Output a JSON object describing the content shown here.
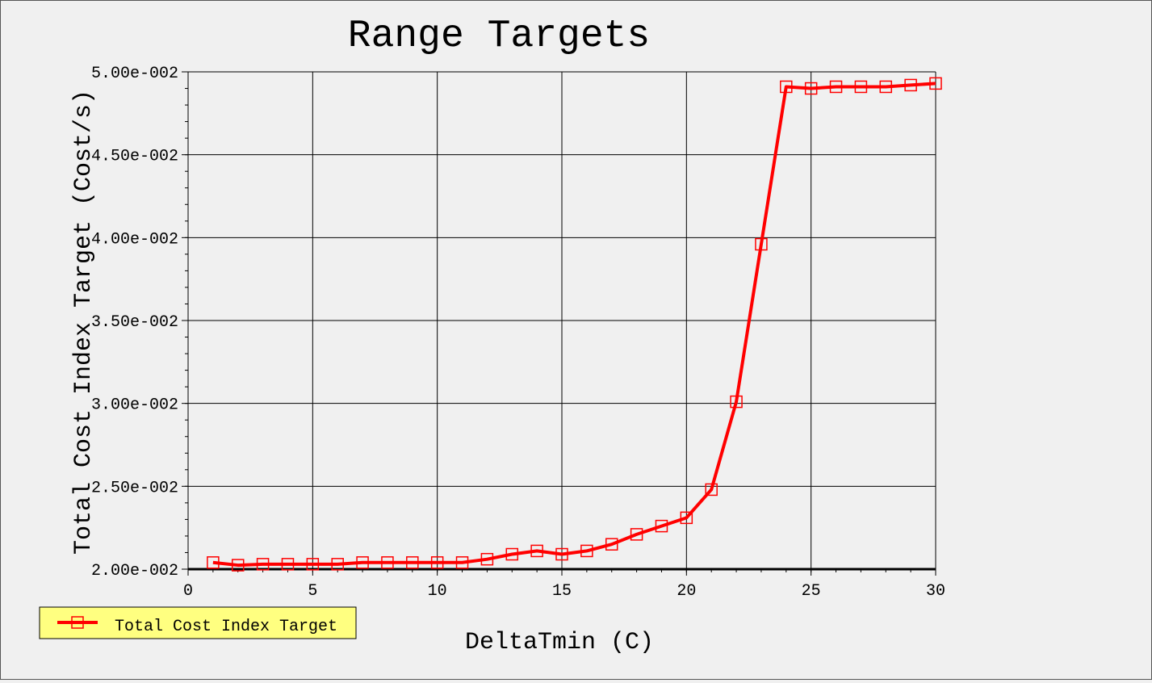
{
  "chart_data": {
    "type": "line",
    "title": "Range Targets",
    "xlabel": "DeltaTmin (C)",
    "ylabel": "Total Cost Index Target (Cost/s)",
    "xlim": [
      0,
      30
    ],
    "ylim": [
      0.02,
      0.05
    ],
    "xticks": [
      "0",
      "5",
      "10",
      "15",
      "20",
      "25",
      "30"
    ],
    "yticks": [
      "2.00e-002",
      "2.50e-002",
      "3.00e-002",
      "3.50e-002",
      "4.00e-002",
      "4.50e-002",
      "5.00e-002"
    ],
    "grid": true,
    "legend_position": "bottom-left",
    "series": [
      {
        "name": "Total Cost Index Target",
        "color": "#ff0000",
        "marker": "square",
        "x": [
          1,
          2,
          3,
          4,
          5,
          6,
          7,
          8,
          9,
          10,
          11,
          12,
          13,
          14,
          15,
          16,
          17,
          18,
          19,
          20,
          21,
          22,
          23,
          24,
          25,
          26,
          27,
          28,
          29,
          30
        ],
        "y": [
          0.0204,
          0.02024,
          0.0203,
          0.0203,
          0.0203,
          0.0203,
          0.0204,
          0.0204,
          0.0204,
          0.0204,
          0.0204,
          0.0206,
          0.0209,
          0.0211,
          0.0209,
          0.0211,
          0.0215,
          0.0221,
          0.0226,
          0.0231,
          0.0248,
          0.0301,
          0.0396,
          0.0491,
          0.049,
          0.0491,
          0.0491,
          0.0491,
          0.0492,
          0.0493
        ]
      }
    ]
  }
}
